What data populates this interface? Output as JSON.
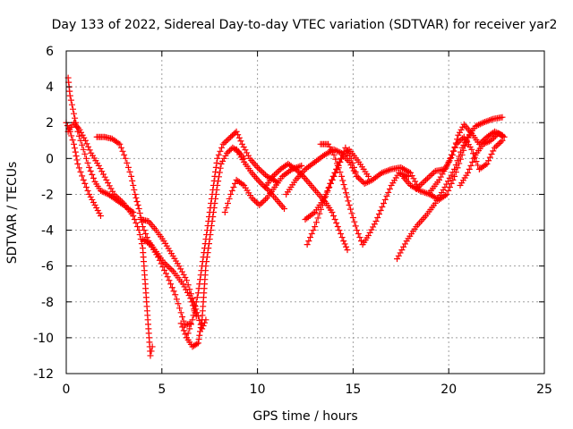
{
  "chart_data": {
    "type": "scatter",
    "title": "Day 133 of 2022, Sidereal Day-to-day VTEC variation (SDTVAR) for receiver yar2",
    "xlabel": "GPS time / hours",
    "ylabel": "SDTVAR / TECUs",
    "xlim": [
      0,
      25
    ],
    "ylim": [
      -12,
      6
    ],
    "xticks": [
      0,
      5,
      10,
      15,
      20,
      25
    ],
    "yticks": [
      -12,
      -10,
      -8,
      -6,
      -4,
      -2,
      0,
      2,
      4,
      6
    ],
    "grid": true,
    "marker": "+",
    "color": "#ff0000",
    "series": [
      {
        "name": "trace-1",
        "points": [
          [
            0.1,
            4.5
          ],
          [
            0.2,
            3.5
          ],
          [
            0.4,
            2.5
          ],
          [
            0.6,
            1.5
          ],
          [
            0.9,
            0.5
          ],
          [
            1.2,
            -0.5
          ],
          [
            1.5,
            -1.3
          ],
          [
            1.8,
            -1.8
          ],
          [
            2.2,
            -2.0
          ],
          [
            2.6,
            -2.3
          ],
          [
            3.0,
            -2.6
          ],
          [
            3.5,
            -3.0
          ]
        ]
      },
      {
        "name": "trace-2",
        "points": [
          [
            0.0,
            2.0
          ],
          [
            0.2,
            1.5
          ],
          [
            0.4,
            0.8
          ],
          [
            0.6,
            -0.3
          ],
          [
            0.9,
            -1.2
          ],
          [
            1.2,
            -2.0
          ],
          [
            1.5,
            -2.6
          ],
          [
            1.8,
            -3.2
          ]
        ]
      },
      {
        "name": "trace-3",
        "points": [
          [
            0.1,
            1.5
          ],
          [
            0.4,
            2.0
          ],
          [
            0.7,
            1.6
          ],
          [
            1.0,
            1.0
          ],
          [
            1.3,
            0.3
          ],
          [
            1.7,
            -0.4
          ],
          [
            2.1,
            -1.2
          ],
          [
            2.5,
            -2.0
          ],
          [
            3.0,
            -2.5
          ],
          [
            3.5,
            -3.2
          ],
          [
            3.8,
            -4.0
          ],
          [
            4.0,
            -5.0
          ],
          [
            4.1,
            -6.5
          ],
          [
            4.2,
            -8.0
          ],
          [
            4.3,
            -9.5
          ],
          [
            4.4,
            -11.0
          ],
          [
            4.5,
            -10.5
          ]
        ]
      },
      {
        "name": "trace-4",
        "points": [
          [
            1.6,
            1.2
          ],
          [
            2.0,
            1.2
          ],
          [
            2.4,
            1.1
          ],
          [
            2.8,
            0.8
          ],
          [
            3.1,
            0.0
          ],
          [
            3.4,
            -1.0
          ],
          [
            3.6,
            -2.0
          ],
          [
            3.8,
            -2.8
          ],
          [
            4.0,
            -3.8
          ],
          [
            4.3,
            -4.6
          ],
          [
            4.7,
            -5.2
          ],
          [
            5.1,
            -5.8
          ],
          [
            5.6,
            -6.3
          ],
          [
            6.1,
            -7.0
          ],
          [
            6.5,
            -7.8
          ],
          [
            6.8,
            -8.8
          ]
        ]
      },
      {
        "name": "trace-5",
        "points": [
          [
            3.9,
            -3.4
          ],
          [
            4.3,
            -3.5
          ],
          [
            4.7,
            -4.0
          ],
          [
            5.1,
            -4.6
          ],
          [
            5.5,
            -5.3
          ],
          [
            5.9,
            -6.0
          ],
          [
            6.3,
            -6.8
          ],
          [
            6.6,
            -7.8
          ],
          [
            6.9,
            -8.8
          ],
          [
            7.1,
            -9.5
          ],
          [
            7.3,
            -9.0
          ]
        ]
      },
      {
        "name": "trace-6",
        "points": [
          [
            4.0,
            -4.5
          ],
          [
            4.4,
            -4.8
          ],
          [
            4.8,
            -5.5
          ],
          [
            5.3,
            -6.6
          ],
          [
            5.7,
            -7.6
          ],
          [
            6.0,
            -8.6
          ],
          [
            6.2,
            -9.3
          ],
          [
            6.5,
            -9.2
          ]
        ]
      },
      {
        "name": "trace-7",
        "points": [
          [
            6.0,
            -9.2
          ],
          [
            6.3,
            -10.0
          ],
          [
            6.6,
            -10.5
          ],
          [
            6.9,
            -10.3
          ],
          [
            7.1,
            -9.0
          ],
          [
            7.2,
            -7.5
          ],
          [
            7.3,
            -6.0
          ],
          [
            7.5,
            -4.5
          ],
          [
            7.7,
            -3.0
          ],
          [
            7.9,
            -1.5
          ],
          [
            8.1,
            -0.3
          ],
          [
            8.4,
            0.3
          ],
          [
            8.7,
            0.6
          ],
          [
            9.0,
            0.4
          ],
          [
            9.3,
            0.0
          ]
        ]
      },
      {
        "name": "trace-8",
        "points": [
          [
            6.3,
            -10.0
          ],
          [
            6.6,
            -9.0
          ],
          [
            6.9,
            -7.5
          ],
          [
            7.1,
            -6.0
          ],
          [
            7.3,
            -4.5
          ],
          [
            7.5,
            -3.0
          ],
          [
            7.7,
            -1.5
          ],
          [
            7.9,
            0.0
          ],
          [
            8.2,
            0.8
          ],
          [
            8.6,
            1.2
          ],
          [
            8.9,
            1.5
          ],
          [
            9.2,
            0.8
          ],
          [
            9.6,
            0.0
          ],
          [
            10.0,
            -0.5
          ],
          [
            10.5,
            -1.0
          ],
          [
            11.0,
            -1.3
          ]
        ]
      },
      {
        "name": "trace-9",
        "points": [
          [
            8.9,
            0.5
          ],
          [
            9.3,
            -0.2
          ],
          [
            9.7,
            -0.8
          ],
          [
            10.1,
            -1.3
          ],
          [
            10.6,
            -1.8
          ],
          [
            11.0,
            -2.3
          ],
          [
            11.4,
            -2.8
          ]
        ]
      },
      {
        "name": "trace-10",
        "points": [
          [
            8.3,
            -3.0
          ],
          [
            8.6,
            -2.0
          ],
          [
            8.9,
            -1.2
          ],
          [
            9.3,
            -1.5
          ],
          [
            9.7,
            -2.2
          ],
          [
            10.1,
            -2.6
          ],
          [
            10.5,
            -2.2
          ],
          [
            10.9,
            -1.6
          ],
          [
            11.3,
            -1.0
          ],
          [
            11.8,
            -0.6
          ],
          [
            12.3,
            -0.4
          ]
        ]
      },
      {
        "name": "trace-11",
        "points": [
          [
            10.4,
            -1.6
          ],
          [
            10.8,
            -1.0
          ],
          [
            11.2,
            -0.6
          ],
          [
            11.6,
            -0.3
          ],
          [
            12.0,
            -0.6
          ],
          [
            12.4,
            -1.0
          ],
          [
            12.8,
            -1.5
          ],
          [
            13.2,
            -2.0
          ],
          [
            13.6,
            -2.5
          ],
          [
            13.9,
            -3.0
          ],
          [
            14.2,
            -3.8
          ],
          [
            14.5,
            -4.6
          ],
          [
            14.7,
            -5.1
          ]
        ]
      },
      {
        "name": "trace-12",
        "points": [
          [
            11.5,
            -2.0
          ],
          [
            12.0,
            -1.2
          ],
          [
            12.5,
            -0.6
          ],
          [
            13.0,
            -0.2
          ],
          [
            13.5,
            0.2
          ],
          [
            14.0,
            0.5
          ],
          [
            14.4,
            0.3
          ],
          [
            14.8,
            -0.2
          ],
          [
            15.2,
            -1.0
          ],
          [
            15.6,
            -1.4
          ],
          [
            16.0,
            -1.2
          ],
          [
            16.5,
            -0.8
          ],
          [
            17.0,
            -0.6
          ],
          [
            17.5,
            -0.5
          ],
          [
            18.0,
            -0.8
          ],
          [
            18.4,
            -1.6
          ]
        ]
      },
      {
        "name": "trace-13",
        "points": [
          [
            12.6,
            -4.8
          ],
          [
            13.0,
            -3.8
          ],
          [
            13.4,
            -2.6
          ],
          [
            13.8,
            -1.4
          ],
          [
            14.2,
            -0.4
          ],
          [
            14.6,
            0.6
          ],
          [
            14.9,
            0.0
          ],
          [
            15.2,
            -1.0
          ]
        ]
      },
      {
        "name": "trace-14",
        "points": [
          [
            12.5,
            -3.4
          ],
          [
            13.0,
            -3.0
          ],
          [
            13.5,
            -2.2
          ],
          [
            14.0,
            -1.0
          ],
          [
            14.4,
            0.0
          ],
          [
            14.8,
            0.5
          ],
          [
            15.3,
            -0.2
          ],
          [
            15.8,
            -1.0
          ]
        ]
      },
      {
        "name": "trace-15",
        "points": [
          [
            13.3,
            0.8
          ],
          [
            13.7,
            0.8
          ],
          [
            14.0,
            0.2
          ],
          [
            14.4,
            -1.0
          ],
          [
            14.8,
            -2.6
          ],
          [
            15.2,
            -4.0
          ],
          [
            15.5,
            -4.8
          ],
          [
            15.8,
            -4.3
          ],
          [
            16.2,
            -3.5
          ],
          [
            16.6,
            -2.5
          ],
          [
            17.0,
            -1.5
          ],
          [
            17.4,
            -0.8
          ],
          [
            17.9,
            -1.0
          ]
        ]
      },
      {
        "name": "trace-16",
        "points": [
          [
            17.3,
            -5.6
          ],
          [
            17.8,
            -4.6
          ],
          [
            18.3,
            -3.8
          ],
          [
            18.8,
            -3.2
          ],
          [
            19.3,
            -2.5
          ],
          [
            19.8,
            -1.6
          ],
          [
            20.3,
            -0.6
          ],
          [
            20.7,
            0.6
          ],
          [
            21.1,
            1.3
          ]
        ]
      },
      {
        "name": "trace-17",
        "points": [
          [
            17.6,
            -1.0
          ],
          [
            18.0,
            -1.5
          ],
          [
            18.5,
            -1.8
          ],
          [
            19.0,
            -2.0
          ],
          [
            19.5,
            -2.3
          ],
          [
            19.9,
            -2.0
          ],
          [
            20.3,
            -1.0
          ],
          [
            20.7,
            0.2
          ],
          [
            21.0,
            1.2
          ],
          [
            21.4,
            1.8
          ],
          [
            21.8,
            2.0
          ],
          [
            22.3,
            2.2
          ],
          [
            22.8,
            2.3
          ]
        ]
      },
      {
        "name": "trace-18",
        "points": [
          [
            18.3,
            -1.7
          ],
          [
            18.8,
            -1.2
          ],
          [
            19.3,
            -0.7
          ],
          [
            19.8,
            -0.6
          ],
          [
            20.2,
            0.2
          ],
          [
            20.5,
            1.3
          ],
          [
            20.8,
            1.9
          ],
          [
            21.2,
            1.4
          ],
          [
            21.6,
            0.8
          ],
          [
            22.0,
            1.2
          ],
          [
            22.4,
            1.5
          ],
          [
            22.8,
            1.3
          ]
        ]
      },
      {
        "name": "trace-19",
        "points": [
          [
            19.0,
            -1.9
          ],
          [
            19.5,
            -1.2
          ],
          [
            20.0,
            -0.2
          ],
          [
            20.4,
            0.8
          ],
          [
            20.8,
            1.2
          ],
          [
            21.2,
            0.5
          ],
          [
            21.6,
            -0.6
          ],
          [
            22.0,
            -0.3
          ],
          [
            22.4,
            0.6
          ],
          [
            22.8,
            1.0
          ]
        ]
      },
      {
        "name": "trace-20",
        "points": [
          [
            20.6,
            -1.5
          ],
          [
            21.0,
            -0.8
          ],
          [
            21.4,
            0.2
          ],
          [
            21.8,
            0.8
          ],
          [
            22.2,
            1.0
          ],
          [
            22.6,
            1.4
          ],
          [
            22.9,
            1.2
          ]
        ]
      }
    ]
  }
}
